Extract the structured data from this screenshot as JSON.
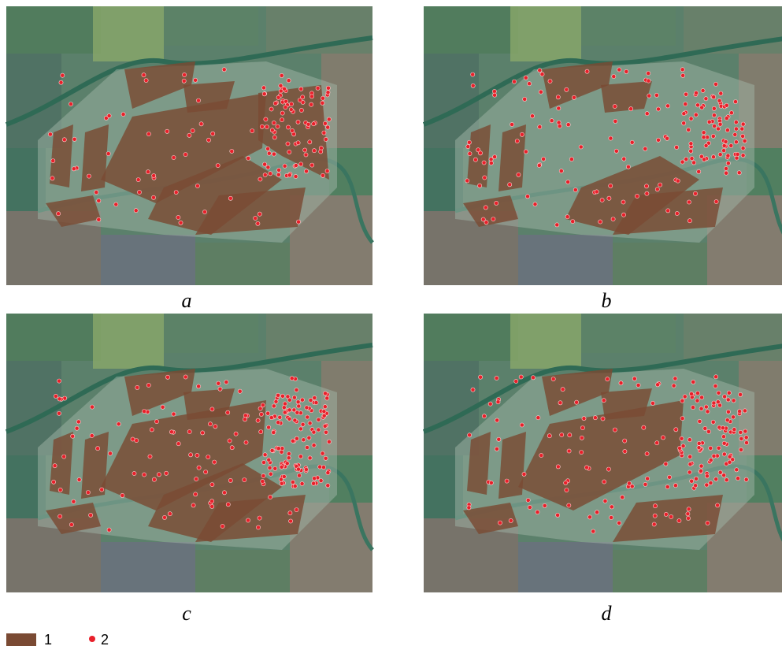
{
  "panels": [
    {
      "label": "a"
    },
    {
      "label": "b"
    },
    {
      "label": "c"
    },
    {
      "label": "d"
    }
  ],
  "legend": [
    {
      "label": "1"
    },
    {
      "label": "2"
    }
  ]
}
